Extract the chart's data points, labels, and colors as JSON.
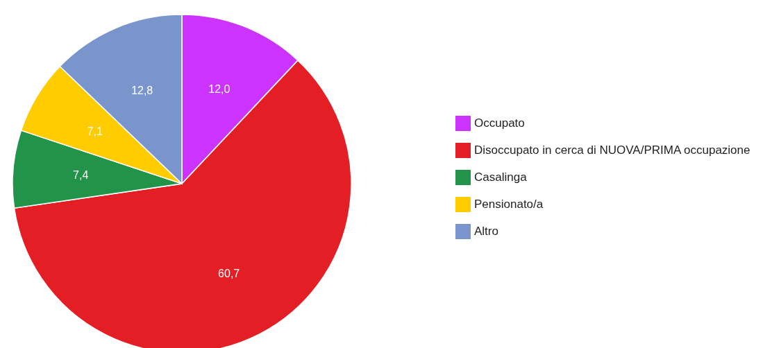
{
  "chart_data": {
    "type": "pie",
    "categories": [
      "Occupato",
      "Disoccupato in cerca di NUOVA/PRIMA occupazione",
      "Casalinga",
      "Pensionato/a",
      "Altro"
    ],
    "values": [
      12.0,
      60.7,
      7.4,
      7.1,
      12.8
    ],
    "colors": [
      "#cc33ff",
      "#e31e24",
      "#21944a",
      "#ffcc00",
      "#7a94cc"
    ],
    "value_labels": [
      "12,0",
      "60,7",
      "7,4",
      "7,1",
      "12,8"
    ],
    "legend": "right"
  }
}
